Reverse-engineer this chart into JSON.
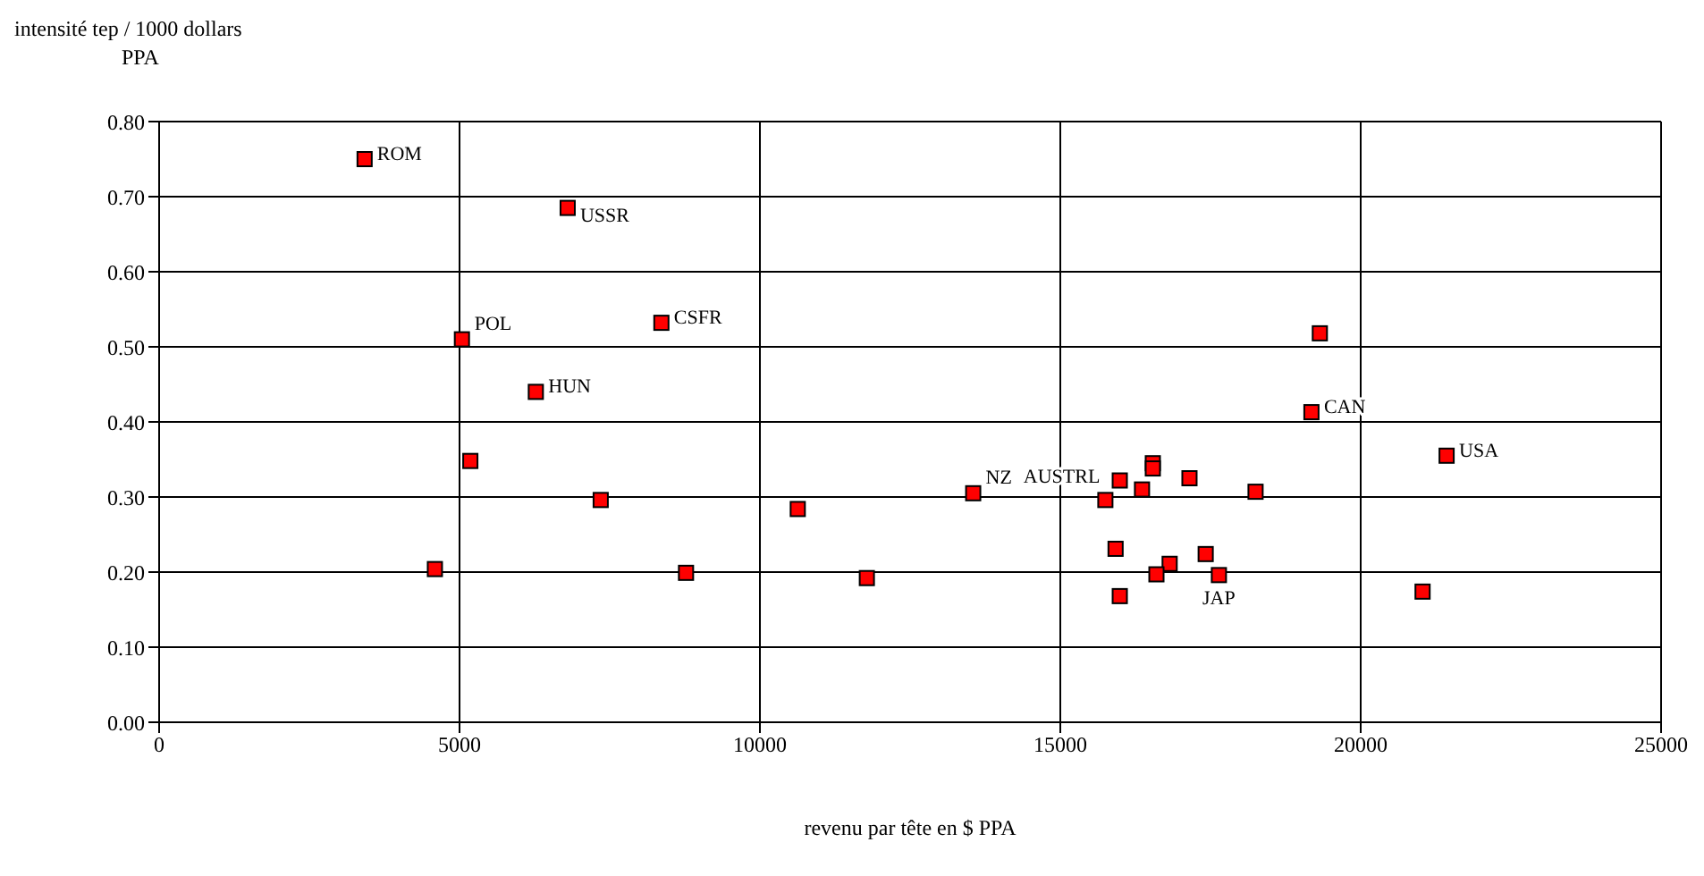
{
  "chart_data": {
    "type": "scatter",
    "ylabel": "intensité tep / 1000 dollars\nPPA",
    "xlabel": "revenu par tête en $ PPA",
    "x": [
      3420,
      6800,
      5040,
      8360,
      6270,
      5180,
      4590,
      7350,
      8770,
      10630,
      11780,
      13550,
      15750,
      15990,
      16360,
      16540,
      16540,
      17150,
      18250,
      19320,
      19180,
      21430,
      15920,
      17420,
      16820,
      16600,
      17640,
      15990,
      21030
    ],
    "series": [
      {
        "color": "#ff0000",
        "values": [
          0.75,
          0.685,
          0.51,
          0.532,
          0.44,
          0.348,
          0.204,
          0.296,
          0.199,
          0.284,
          0.192,
          0.305,
          0.296,
          0.322,
          0.31,
          0.345,
          0.338,
          0.325,
          0.307,
          0.518,
          0.413,
          0.355,
          0.231,
          0.224,
          0.211,
          0.197,
          0.196,
          0.168,
          0.174
        ]
      }
    ],
    "marker": "square",
    "grid": true,
    "legend": false,
    "xlim": [
      0,
      25000
    ],
    "xticks": [
      0,
      5000,
      10000,
      15000,
      20000,
      25000
    ],
    "ylim": [
      0,
      0.8
    ],
    "yticks": [
      {
        "value": 0,
        "label": "0.00"
      },
      {
        "value": 0.1,
        "label": "0.10"
      },
      {
        "value": 0.2,
        "label": "0.20"
      },
      {
        "value": 0.3,
        "label": "0.30"
      },
      {
        "value": 0.4,
        "label": "0.40"
      },
      {
        "value": 0.5,
        "label": "0.50"
      },
      {
        "value": 0.6,
        "label": "0.60"
      },
      {
        "value": 0.7,
        "label": "0.70"
      },
      {
        "value": 0.8,
        "label": "0.80"
      }
    ],
    "annotations": [
      {
        "text": "ROM",
        "x": 3420,
        "y": 0.75
      },
      {
        "text": "USSR",
        "x": 6800,
        "y": 0.685
      },
      {
        "text": "POL",
        "x": 5040,
        "y": 0.51
      },
      {
        "text": "CSFR",
        "x": 8360,
        "y": 0.532
      },
      {
        "text": "HUN",
        "x": 6270,
        "y": 0.44
      },
      {
        "text": "NZ",
        "x": 13550,
        "y": 0.305
      },
      {
        "text": "AUSTRL",
        "x": 15750,
        "y": 0.296
      },
      {
        "text": "CAN",
        "x": 19180,
        "y": 0.413
      },
      {
        "text": "USA",
        "x": 21430,
        "y": 0.355
      },
      {
        "text": "JAP",
        "x": 17640,
        "y": 0.196
      }
    ]
  }
}
